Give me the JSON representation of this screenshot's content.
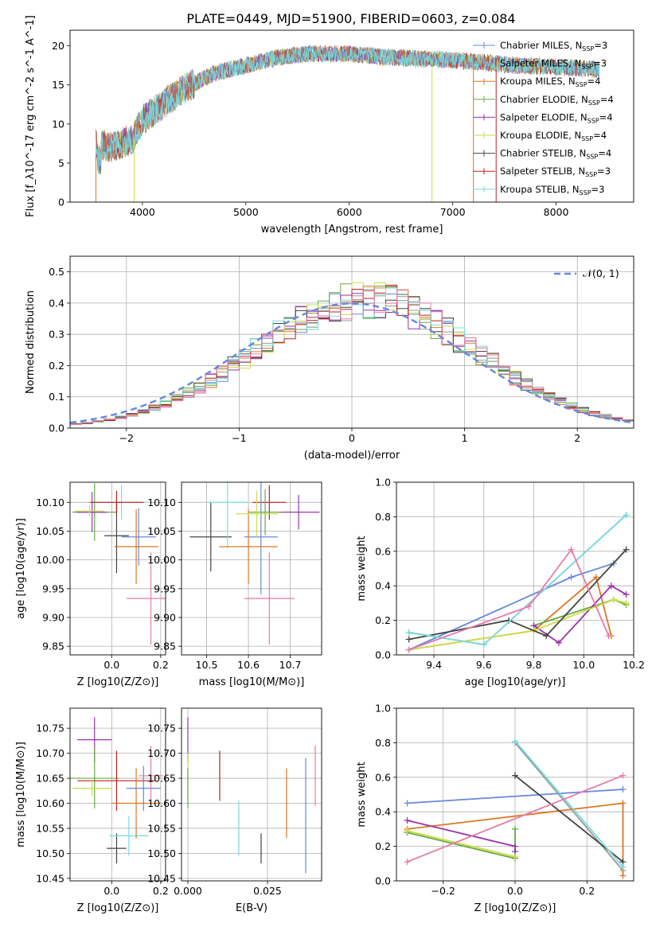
{
  "title": "PLATE=0449, MJD=51900, FIBERID=0603, z=0.084",
  "colors": {
    "chabrier_miles": "#6688dd",
    "salpeter_miles": "#999999",
    "kroupa_miles": "#dd7722",
    "chabrier_elodie": "#66aa44",
    "salpeter_elodie": "#9933aa",
    "kroupa_elodie": "#ccdd44",
    "chabrier_stelib": "#444444",
    "salpeter_stelib": "#bb2222",
    "kroupa_stelib": "#77dddd",
    "pink": "#e87aa8",
    "gauss": "#6688dd",
    "grid": "#b0b0b0"
  },
  "chart_data": [
    {
      "type": "line",
      "id": "spectrum",
      "xlabel": "wavelength [Angstrom, rest frame]",
      "ylabel": "Flux [f_λ10^-17 erg cm^-2 s^-1 A^-1]",
      "xlim": [
        3300,
        8750
      ],
      "ylim": [
        0,
        22
      ],
      "xticks": [
        4000,
        5000,
        6000,
        7000,
        8000
      ],
      "yticks": [
        0,
        5,
        10,
        15,
        20
      ],
      "grid": false,
      "legend_position": "right",
      "legend": [
        {
          "model": "Chabrier MILES",
          "nssp": "N",
          "sub": "SSP",
          "val": "=3",
          "color": "#6688dd"
        },
        {
          "model": "Salpeter MILES",
          "nssp": "N",
          "sub": "SSP",
          "val": "=3",
          "color": "#999999"
        },
        {
          "model": "Kroupa MILES",
          "nssp": "N",
          "sub": "SSP",
          "val": "=4",
          "color": "#dd7722"
        },
        {
          "model": "Chabrier ELODIE",
          "nssp": "N",
          "sub": "SSP",
          "val": "=4",
          "color": "#66aa44"
        },
        {
          "model": "Salpeter ELODIE",
          "nssp": "N",
          "sub": "SSP",
          "val": "=4",
          "color": "#9933aa"
        },
        {
          "model": "Kroupa ELODIE",
          "nssp": "N",
          "sub": "SSP",
          "val": "=4",
          "color": "#ccdd44"
        },
        {
          "model": "Chabrier STELIB",
          "nssp": "N",
          "sub": "SSP",
          "val": "=4",
          "color": "#444444"
        },
        {
          "model": "Salpeter STELIB",
          "nssp": "N",
          "sub": "SSP",
          "val": "=3",
          "color": "#bb2222"
        },
        {
          "model": "Kroupa STELIB",
          "nssp": "N",
          "sub": "SSP",
          "val": "=3",
          "color": "#77dddd"
        }
      ],
      "continuum": [
        [
          3550,
          7.5
        ],
        [
          3700,
          7.0
        ],
        [
          3900,
          8.0
        ],
        [
          4000,
          10.5
        ],
        [
          4200,
          12.5
        ],
        [
          4400,
          14.5
        ],
        [
          4700,
          16.5
        ],
        [
          5000,
          17.5
        ],
        [
          5300,
          18.5
        ],
        [
          5600,
          19.0
        ],
        [
          6000,
          19.0
        ],
        [
          6400,
          18.5
        ],
        [
          6800,
          18.3
        ],
        [
          7200,
          18.0
        ],
        [
          7600,
          17.5
        ],
        [
          8000,
          17.3
        ],
        [
          8400,
          17.0
        ]
      ]
    },
    {
      "type": "histogram",
      "id": "residuals",
      "xlabel": "(data-model)/error",
      "ylabel": "Normed distribution",
      "xlim": [
        -2.5,
        2.5
      ],
      "ylim": [
        0,
        0.55
      ],
      "xticks": [
        -2,
        -1,
        0,
        1,
        2
      ],
      "yticks": [
        0.0,
        0.1,
        0.2,
        0.3,
        0.4,
        0.5
      ],
      "grid": true,
      "legend_position": "upper right",
      "legend": [
        "𝒩(0, 1)"
      ]
    },
    {
      "type": "scatter",
      "id": "age_vs_Z",
      "xlabel": "Z [log10(Z/Z⊙)]",
      "ylabel": "age [log10(age/yr)]",
      "xlim": [
        -0.17,
        0.22
      ],
      "ylim": [
        9.835,
        10.135
      ],
      "xticks": [
        0.0,
        0.2
      ],
      "yticks": [
        9.85,
        9.9,
        9.95,
        10.0,
        10.05,
        10.1
      ],
      "grid": true,
      "points": [
        {
          "x": -0.07,
          "y": 10.083,
          "xerr": 0.09,
          "yerr": 0.05,
          "color": "#66aa44"
        },
        {
          "x": -0.08,
          "y": 10.083,
          "xerr": 0.06,
          "yerr": 0.035,
          "color": "#9933aa"
        },
        {
          "x": 0.02,
          "y": 10.042,
          "xerr": 0.05,
          "yerr": 0.065,
          "color": "#444444"
        },
        {
          "x": 0.04,
          "y": 10.1,
          "xerr": 0.1,
          "yerr": 0.03,
          "color": "#77dddd"
        },
        {
          "x": 0.02,
          "y": 10.1,
          "xerr": 0.11,
          "yerr": 0.02,
          "color": "#bb2222"
        },
        {
          "x": 0.11,
          "y": 10.04,
          "xerr": 0.07,
          "yerr": 0.05,
          "color": "#6688dd"
        },
        {
          "x": 0.1,
          "y": 10.023,
          "xerr": 0.09,
          "yerr": 0.065,
          "color": "#dd7722"
        },
        {
          "x": 0.16,
          "y": 9.933,
          "xerr": 0.1,
          "yerr": 0.08,
          "color": "#e87aa8"
        },
        {
          "x": -0.09,
          "y": 10.085,
          "xerr": 0.06,
          "yerr": 0.01,
          "color": "#ccdd44"
        }
      ]
    },
    {
      "type": "scatter",
      "id": "age_vs_mass",
      "xlabel": "mass [log10(M/M⊙)]",
      "ylabel": "",
      "xlim": [
        10.44,
        10.775
      ],
      "ylim": [
        9.835,
        10.135
      ],
      "xticks": [
        10.5,
        10.6,
        10.7
      ],
      "yticks": [
        9.85,
        9.9,
        9.95,
        10.0,
        10.05,
        10.1
      ],
      "grid": true,
      "points": [
        {
          "x": 10.51,
          "y": 10.04,
          "xerr": 0.05,
          "yerr": 0.06,
          "color": "#444444"
        },
        {
          "x": 10.55,
          "y": 10.1,
          "xerr": 0.05,
          "yerr": 0.08,
          "color": "#77dddd"
        },
        {
          "x": 10.65,
          "y": 10.1,
          "xerr": 0.04,
          "yerr": 0.03,
          "color": "#bb2222"
        },
        {
          "x": 10.63,
          "y": 10.04,
          "xerr": 0.04,
          "yerr": 0.1,
          "color": "#6688dd"
        },
        {
          "x": 10.6,
          "y": 10.023,
          "xerr": 0.07,
          "yerr": 0.065,
          "color": "#dd7722"
        },
        {
          "x": 10.65,
          "y": 9.933,
          "xerr": 0.06,
          "yerr": 0.08,
          "color": "#e87aa8"
        },
        {
          "x": 10.72,
          "y": 10.083,
          "xerr": 0.05,
          "yerr": 0.03,
          "color": "#9933aa"
        },
        {
          "x": 10.64,
          "y": 10.083,
          "xerr": 0.04,
          "yerr": 0.04,
          "color": "#66aa44"
        },
        {
          "x": 10.62,
          "y": 10.08,
          "xerr": 0.05,
          "yerr": 0.04,
          "color": "#ccdd44"
        }
      ]
    },
    {
      "type": "line",
      "id": "massweight_vs_age",
      "xlabel": "age [log10(age/yr)]",
      "ylabel": "mass weight",
      "xlim": [
        9.25,
        10.2
      ],
      "ylim": [
        0,
        1.0
      ],
      "xticks": [
        9.4,
        9.6,
        9.8,
        10.0,
        10.2
      ],
      "yticks": [
        0.0,
        0.2,
        0.4,
        0.6,
        0.8,
        1.0
      ],
      "grid": true,
      "series": [
        {
          "color": "#6688dd",
          "points": [
            [
              9.3,
              0.03
            ],
            [
              9.95,
              0.45
            ],
            [
              10.12,
              0.53
            ]
          ]
        },
        {
          "color": "#999999",
          "points": [
            [
              9.3,
              0.13
            ],
            [
              9.6,
              0.06
            ],
            [
              10.17,
              0.81
            ]
          ]
        },
        {
          "color": "#dd7722",
          "points": [
            [
              9.3,
              0.03
            ],
            [
              9.8,
              0.14
            ],
            [
              10.05,
              0.45
            ],
            [
              10.11,
              0.11
            ]
          ]
        },
        {
          "color": "#66aa44",
          "points": [
            [
              9.8,
              0.17
            ],
            [
              10.12,
              0.32
            ],
            [
              10.17,
              0.29
            ]
          ]
        },
        {
          "color": "#9933aa",
          "points": [
            [
              9.8,
              0.17
            ],
            [
              9.9,
              0.07
            ],
            [
              10.11,
              0.4
            ],
            [
              10.17,
              0.35
            ]
          ]
        },
        {
          "color": "#ccdd44",
          "points": [
            [
              9.3,
              0.03
            ],
            [
              9.8,
              0.14
            ],
            [
              10.12,
              0.32
            ],
            [
              10.17,
              0.3
            ]
          ]
        },
        {
          "color": "#444444",
          "points": [
            [
              9.3,
              0.09
            ],
            [
              9.7,
              0.2
            ],
            [
              9.85,
              0.11
            ],
            [
              10.17,
              0.61
            ]
          ]
        },
        {
          "color": "#77dddd",
          "points": [
            [
              9.3,
              0.13
            ],
            [
              9.6,
              0.06
            ],
            [
              10.17,
              0.81
            ]
          ]
        },
        {
          "color": "#e87aa8",
          "points": [
            [
              9.3,
              0.03
            ],
            [
              9.78,
              0.28
            ],
            [
              9.95,
              0.61
            ],
            [
              10.1,
              0.11
            ]
          ]
        }
      ]
    },
    {
      "type": "scatter",
      "id": "mass_vs_Z",
      "xlabel": "Z [log10(Z/Z⊙)]",
      "ylabel": "mass [log10(M/M⊙)]",
      "xlim": [
        -0.17,
        0.22
      ],
      "ylim": [
        10.445,
        10.79
      ],
      "xticks": [
        0.0,
        0.2
      ],
      "yticks": [
        10.45,
        10.5,
        10.55,
        10.6,
        10.65,
        10.7,
        10.75
      ],
      "grid": true,
      "points": [
        {
          "x": -0.07,
          "y": 10.727,
          "xerr": 0.07,
          "yerr": 0.045,
          "color": "#9933aa"
        },
        {
          "x": -0.07,
          "y": 10.65,
          "xerr": 0.1,
          "yerr": 0.06,
          "color": "#66aa44"
        },
        {
          "x": 0.02,
          "y": 10.645,
          "xerr": 0.16,
          "yerr": 0.06,
          "color": "#bb2222"
        },
        {
          "x": 0.02,
          "y": 10.51,
          "xerr": 0.04,
          "yerr": 0.03,
          "color": "#444444"
        },
        {
          "x": 0.07,
          "y": 10.535,
          "xerr": 0.08,
          "yerr": 0.04,
          "color": "#77dddd"
        },
        {
          "x": 0.1,
          "y": 10.6,
          "xerr": 0.1,
          "yerr": 0.07,
          "color": "#dd7722"
        },
        {
          "x": 0.13,
          "y": 10.63,
          "xerr": 0.07,
          "yerr": 0.045,
          "color": "#6688dd"
        },
        {
          "x": 0.16,
          "y": 10.655,
          "xerr": 0.05,
          "yerr": 0.06,
          "color": "#e87aa8"
        },
        {
          "x": -0.08,
          "y": 10.63,
          "xerr": 0.08,
          "yerr": 0.015,
          "color": "#ccdd44"
        }
      ]
    },
    {
      "type": "scatter",
      "id": "mass_vs_ebv",
      "xlabel": "E(B-V)",
      "ylabel": "",
      "xlim": [
        -0.002,
        0.042
      ],
      "ylim": [
        10.445,
        10.79
      ],
      "xticks": [
        0.0,
        0.025
      ],
      "yticks": [
        10.45,
        10.5,
        10.55,
        10.6,
        10.65,
        10.7,
        10.75
      ],
      "grid": true,
      "points": [
        {
          "x": 0.0,
          "y": 10.727,
          "xerr": 0,
          "yerr": 0.045,
          "color": "#9933aa"
        },
        {
          "x": 0.0,
          "y": 10.65,
          "xerr": 0,
          "yerr": 0.05,
          "color": "#ccdd44"
        },
        {
          "x": 0.0,
          "y": 10.63,
          "xerr": 0,
          "yerr": 0.04,
          "color": "#66aa44"
        },
        {
          "x": 0.01,
          "y": 10.655,
          "xerr": 0,
          "yerr": 0.05,
          "color": "#bb2222"
        },
        {
          "x": 0.016,
          "y": 10.55,
          "xerr": 0,
          "yerr": 0.055,
          "color": "#77dddd"
        },
        {
          "x": 0.023,
          "y": 10.51,
          "xerr": 0,
          "yerr": 0.03,
          "color": "#444444"
        },
        {
          "x": 0.031,
          "y": 10.6,
          "xerr": 0,
          "yerr": 0.07,
          "color": "#dd7722"
        },
        {
          "x": 0.037,
          "y": 10.575,
          "xerr": 0,
          "yerr": 0.115,
          "color": "#6688dd"
        },
        {
          "x": 0.04,
          "y": 10.655,
          "xerr": 0,
          "yerr": 0.06,
          "color": "#e87aa8"
        }
      ]
    },
    {
      "type": "line",
      "id": "massweight_vs_Z",
      "xlabel": "Z [log10(Z/Z⊙)]",
      "ylabel": "mass weight",
      "xlim": [
        -0.33,
        0.33
      ],
      "ylim": [
        0,
        1.0
      ],
      "xticks": [
        -0.2,
        0.0,
        0.2
      ],
      "yticks": [
        0.0,
        0.2,
        0.4,
        0.6,
        0.8,
        1.0
      ],
      "grid": true,
      "series": [
        {
          "color": "#6688dd",
          "points": [
            [
              -0.3,
              0.45
            ],
            [
              0.3,
              0.53
            ]
          ]
        },
        {
          "color": "#999999",
          "points": [
            [
              0.0,
              0.8
            ],
            [
              0.3,
              0.06
            ]
          ]
        },
        {
          "color": "#dd7722",
          "points": [
            [
              -0.3,
              0.3
            ],
            [
              0.3,
              0.45
            ],
            [
              0.3,
              0.03
            ]
          ]
        },
        {
          "color": "#66aa44",
          "points": [
            [
              -0.3,
              0.28
            ],
            [
              0.0,
              0.13
            ],
            [
              0.0,
              0.3
            ]
          ]
        },
        {
          "color": "#9933aa",
          "points": [
            [
              -0.3,
              0.35
            ],
            [
              0.0,
              0.2
            ],
            [
              0.0,
              0.17
            ]
          ]
        },
        {
          "color": "#ccdd44",
          "points": [
            [
              -0.3,
              0.29
            ],
            [
              0.0,
              0.14
            ]
          ]
        },
        {
          "color": "#444444",
          "points": [
            [
              0.0,
              0.61
            ],
            [
              0.3,
              0.11
            ]
          ]
        },
        {
          "color": "#77dddd",
          "points": [
            [
              0.0,
              0.81
            ],
            [
              0.3,
              0.08
            ]
          ]
        },
        {
          "color": "#e87aa8",
          "points": [
            [
              -0.3,
              0.11
            ],
            [
              0.3,
              0.61
            ]
          ]
        }
      ]
    }
  ]
}
